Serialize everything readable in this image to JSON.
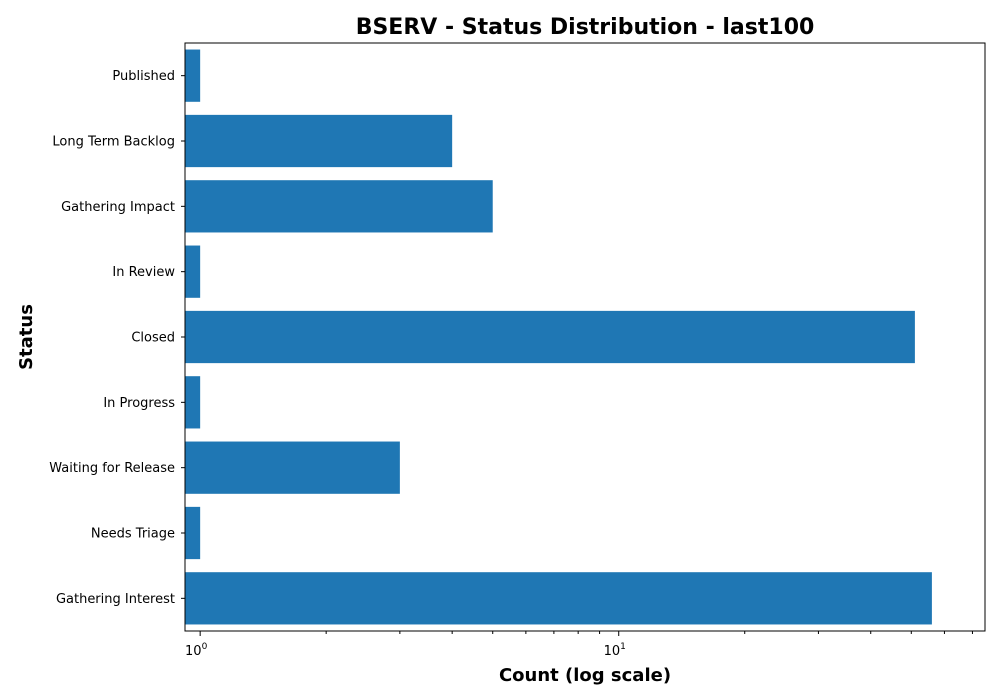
{
  "chart_data": {
    "type": "bar",
    "orientation": "horizontal",
    "title": "BSERV - Status Distribution - last100",
    "xlabel": "Count (log scale)",
    "ylabel": "Status",
    "x_scale": "log",
    "xlim": [
      0.92,
      75
    ],
    "xticks": [
      {
        "base": "10",
        "exp": "0",
        "value": 1
      },
      {
        "base": "10",
        "exp": "1",
        "value": 10
      }
    ],
    "categories": [
      "Gathering Interest",
      "Needs Triage",
      "Waiting for Release",
      "In Progress",
      "Closed",
      "In Review",
      "Gathering Impact",
      "Long Term Backlog",
      "Published"
    ],
    "values": [
      56,
      1,
      3,
      1,
      51,
      1,
      5,
      4,
      1
    ],
    "bar_color": "#1f77b4",
    "grid": false
  }
}
